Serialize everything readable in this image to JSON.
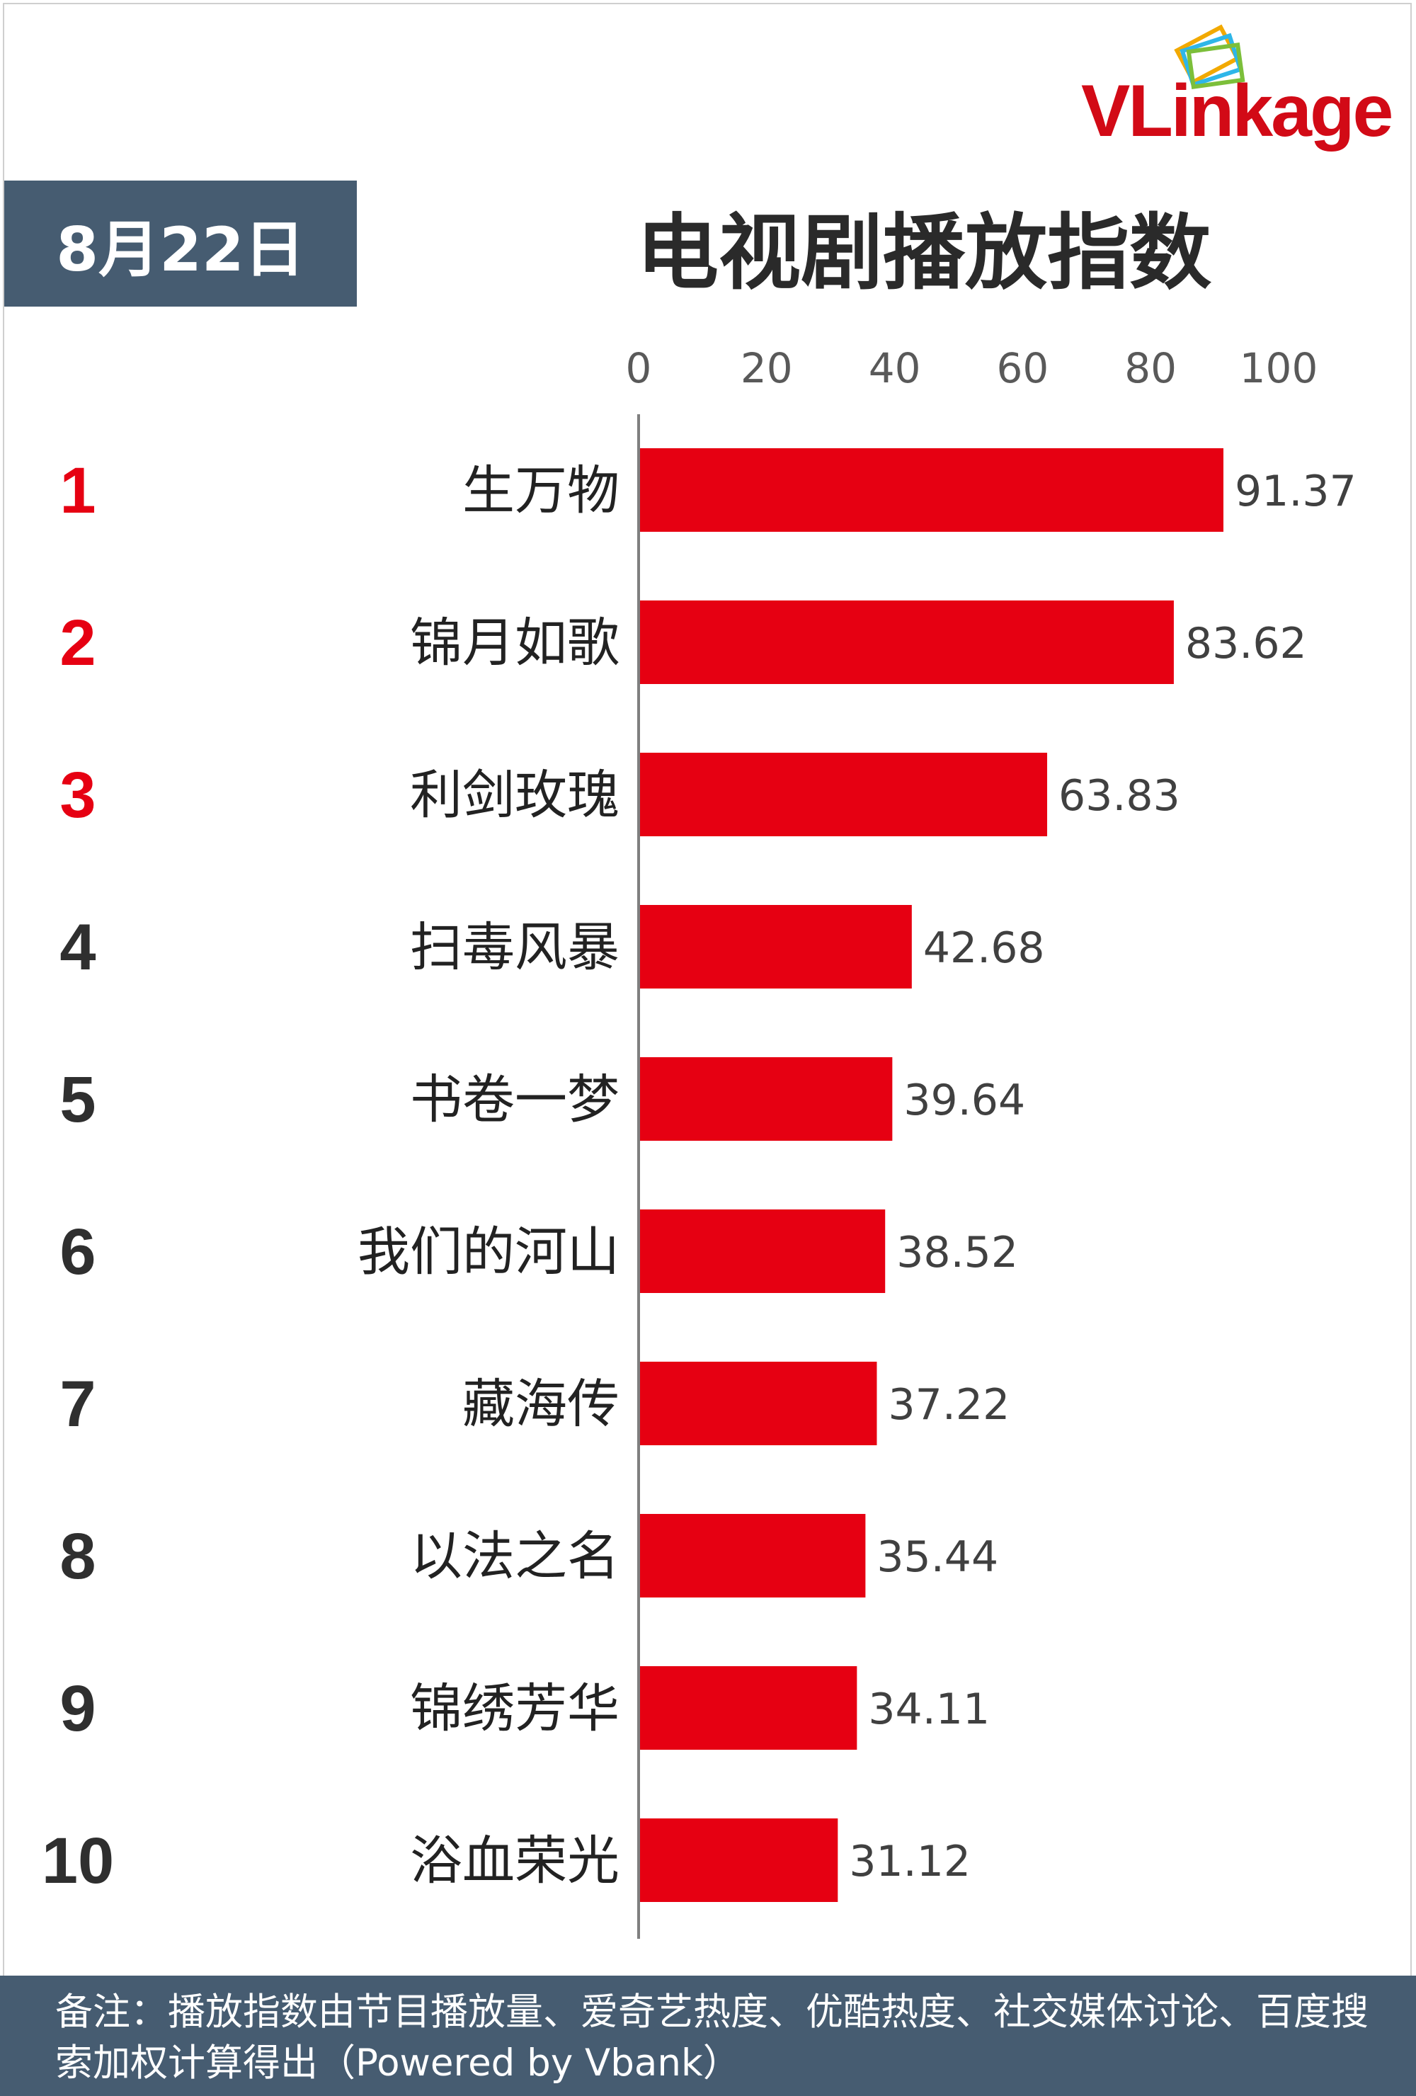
{
  "header": {
    "date_label": "8月22日",
    "title": "电视剧播放指数",
    "logo_text": "VLinkage"
  },
  "footer": {
    "note": "备注：播放指数由节目播放量、爱奇艺热度、优酷热度、社交媒体讨论、百度搜索加权计算得出（Powered by Vbank）"
  },
  "colors": {
    "bar": "#e60012",
    "rank_top": "#e60012",
    "rank_other": "#2f2f2f",
    "header_bg": "#465c71"
  },
  "chart_data": {
    "type": "bar",
    "orientation": "horizontal",
    "title": "电视剧播放指数",
    "xlim": [
      0,
      100
    ],
    "xticks": [
      0,
      20,
      40,
      60,
      80,
      100
    ],
    "grid": false,
    "ranks": [
      "1",
      "2",
      "3",
      "4",
      "5",
      "6",
      "7",
      "8",
      "9",
      "10"
    ],
    "categories": [
      "生万物",
      "锦月如歌",
      "利剑玫瑰",
      "扫毒风暴",
      "书卷一梦",
      "我们的河山",
      "藏海传",
      "以法之名",
      "锦绣芳华",
      "浴血荣光"
    ],
    "values": [
      91.37,
      83.62,
      63.83,
      42.68,
      39.64,
      38.52,
      37.22,
      35.44,
      34.11,
      31.12
    ],
    "value_labels": [
      "91.37",
      "83.62",
      "63.83",
      "42.68",
      "39.64",
      "38.52",
      "37.22",
      "35.44",
      "34.11",
      "31.12"
    ]
  }
}
